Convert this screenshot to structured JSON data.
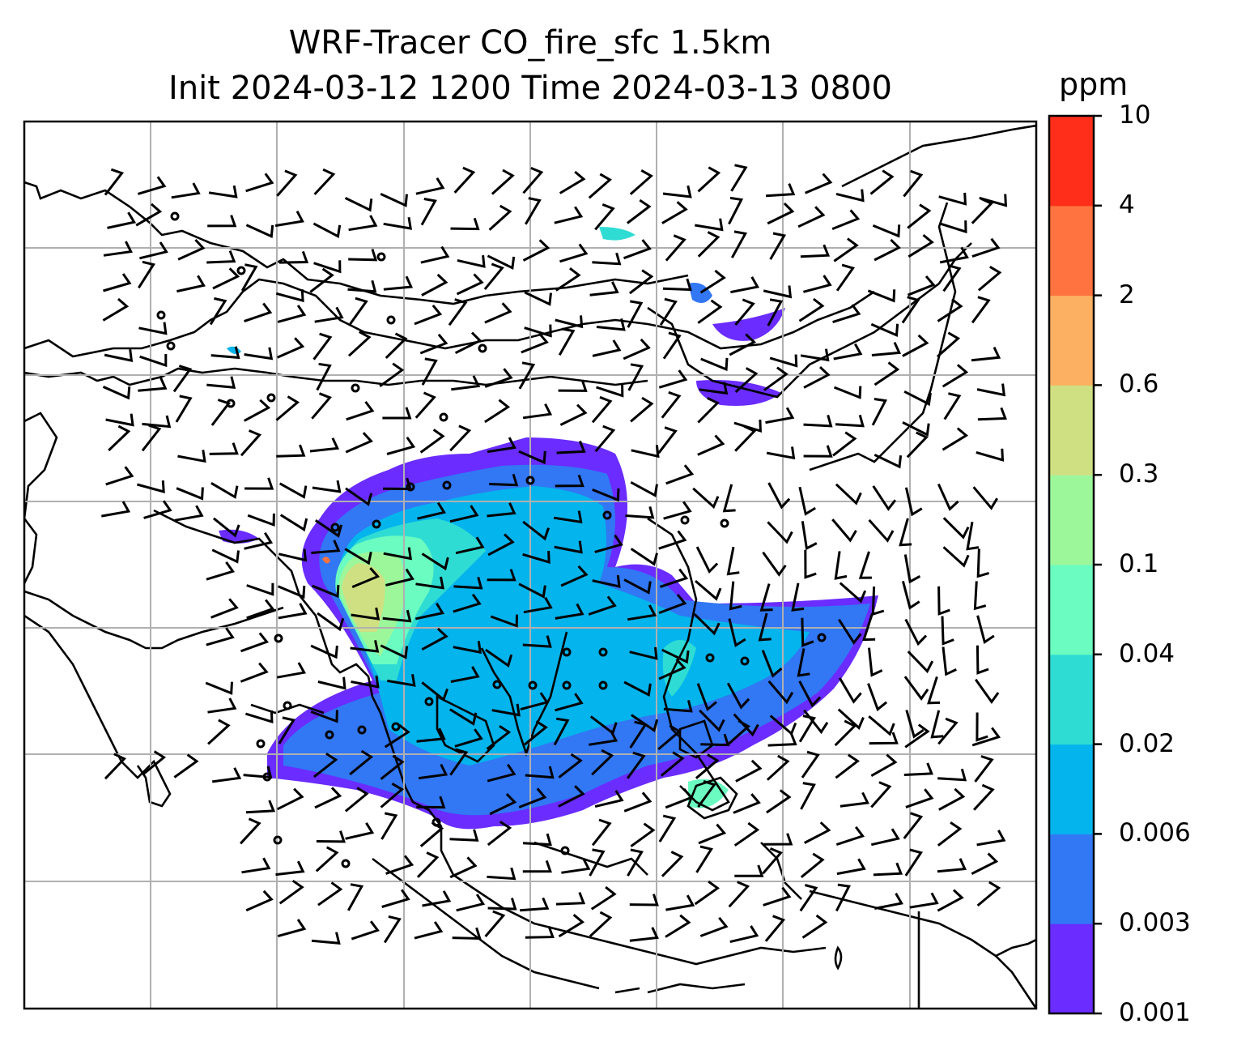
{
  "title": {
    "line1": "WRF-Tracer CO_fire_sfc 1.5km",
    "line2": "Init 2024-03-12 1200 Time 2024-03-13 0800"
  },
  "colorbar": {
    "unit": "ppm",
    "levels": [
      "10",
      "4",
      "2",
      "0.6",
      "0.3",
      "0.1",
      "0.04",
      "0.02",
      "0.006",
      "0.003",
      "0.001"
    ],
    "colors": [
      "#6a2cff",
      "#3277f4",
      "#04b4ec",
      "#2fdcd4",
      "#6afcc0",
      "#9cf79b",
      "#cfe083",
      "#fcb062",
      "#ff7340",
      "#ff2e1a"
    ]
  },
  "map": {
    "field": "CO_fire_sfc",
    "grid_lines": true,
    "wind_barbs": true
  }
}
